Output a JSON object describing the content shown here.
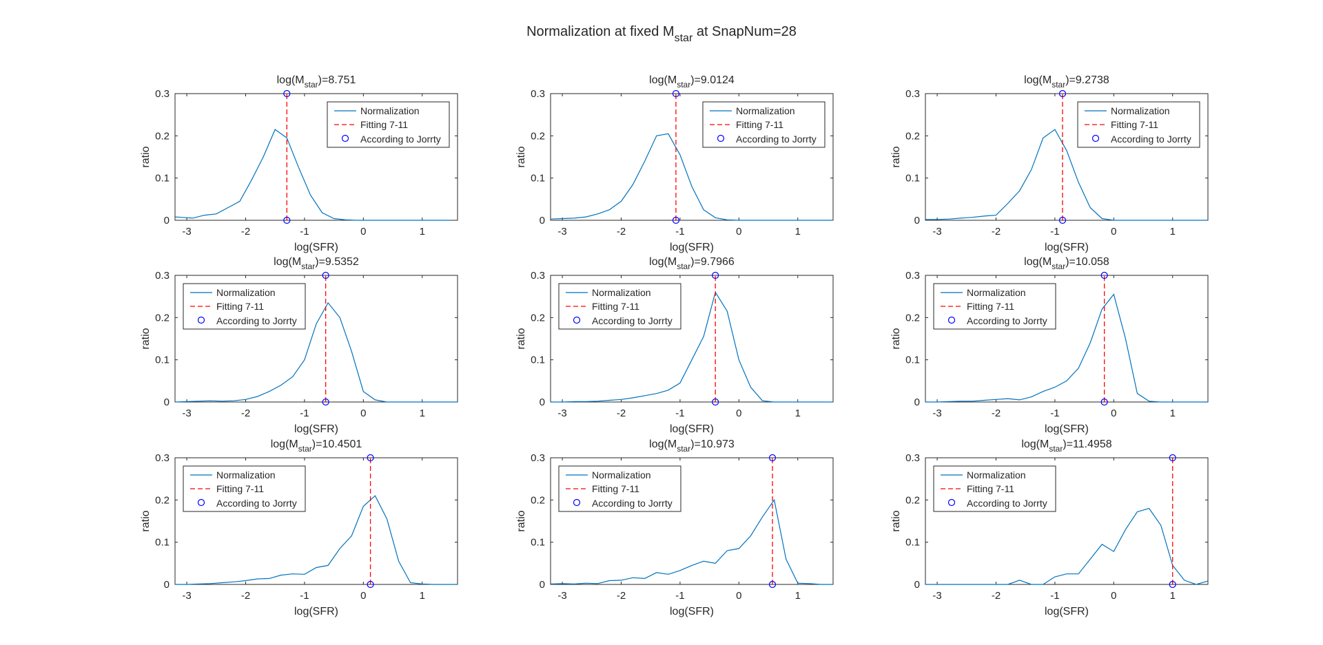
{
  "figure": {
    "title_main": "Normalization at fixed M",
    "title_sub": "star",
    "title_tail": " at SnapNum=28"
  },
  "colors": {
    "normalization": "#0072BD",
    "fitting": "#FF0000",
    "jorrty": "#0000FF",
    "axes": "#262626"
  },
  "legend_labels": [
    "Normalization",
    "Fitting 7-11",
    "According to Jorrty"
  ],
  "chart_data": [
    {
      "type": "line",
      "title_prefix": "log(M",
      "title_sub": "star",
      "title_value": ")=8.751",
      "xlabel": "log(SFR)",
      "ylabel": "ratio",
      "xlim": [
        -3.2,
        1.6
      ],
      "ylim": [
        0,
        0.3
      ],
      "xticks": [
        -3,
        -2,
        -1,
        0,
        1
      ],
      "yticks": [
        0,
        0.1,
        0.2,
        0.3
      ],
      "legend": "top-right",
      "x": [
        -3.2,
        -3.1,
        -2.9,
        -2.7,
        -2.5,
        -2.3,
        -2.1,
        -1.9,
        -1.7,
        -1.5,
        -1.3,
        -1.1,
        -0.9,
        -0.7,
        -0.5,
        -0.3,
        -0.1,
        0.1,
        0.3,
        0.5,
        0.7,
        0.9,
        1.1,
        1.3,
        1.5
      ],
      "y": [
        0.008,
        0.007,
        0.005,
        0.012,
        0.015,
        0.03,
        0.045,
        0.095,
        0.15,
        0.215,
        0.195,
        0.125,
        0.06,
        0.018,
        0.004,
        0.001,
        0,
        0,
        0,
        0,
        0,
        0,
        0,
        0,
        0
      ],
      "fit_x": -1.3,
      "jorrty_points": [
        [
          -1.3,
          0
        ],
        [
          -1.3,
          0.3
        ]
      ]
    },
    {
      "type": "line",
      "title_prefix": "log(M",
      "title_sub": "star",
      "title_value": ")=9.0124",
      "xlabel": "log(SFR)",
      "ylabel": "ratio",
      "xlim": [
        -3.2,
        1.6
      ],
      "ylim": [
        0,
        0.3
      ],
      "xticks": [
        -3,
        -2,
        -1,
        0,
        1
      ],
      "yticks": [
        0,
        0.1,
        0.2,
        0.3
      ],
      "legend": "top-right",
      "x": [
        -3.2,
        -3.0,
        -2.8,
        -2.6,
        -2.4,
        -2.2,
        -2.0,
        -1.8,
        -1.6,
        -1.4,
        -1.2,
        -1.0,
        -0.8,
        -0.6,
        -0.4,
        -0.2,
        0.0,
        0.2,
        0.4,
        0.6,
        0.8,
        1.0,
        1.2,
        1.4,
        1.6
      ],
      "y": [
        0.003,
        0.004,
        0.005,
        0.008,
        0.015,
        0.025,
        0.045,
        0.085,
        0.14,
        0.2,
        0.205,
        0.155,
        0.08,
        0.025,
        0.006,
        0.001,
        0,
        0,
        0,
        0,
        0,
        0,
        0,
        0,
        0
      ],
      "fit_x": -1.07,
      "jorrty_points": [
        [
          -1.07,
          0
        ],
        [
          -1.07,
          0.3
        ]
      ]
    },
    {
      "type": "line",
      "title_prefix": "log(M",
      "title_sub": "star",
      "title_value": ")=9.2738",
      "xlabel": "log(SFR)",
      "ylabel": "ratio",
      "xlim": [
        -3.2,
        1.6
      ],
      "ylim": [
        0,
        0.3
      ],
      "xticks": [
        -3,
        -2,
        -1,
        0,
        1
      ],
      "yticks": [
        0,
        0.1,
        0.2,
        0.3
      ],
      "legend": "top-right",
      "x": [
        -3.2,
        -3.0,
        -2.8,
        -2.6,
        -2.4,
        -2.2,
        -2.0,
        -1.8,
        -1.6,
        -1.4,
        -1.2,
        -1.0,
        -0.8,
        -0.6,
        -0.4,
        -0.2,
        0.0,
        0.2,
        0.4,
        0.6,
        0.8,
        1.0,
        1.2,
        1.4,
        1.6
      ],
      "y": [
        0.002,
        0.002,
        0.003,
        0.005,
        0.007,
        0.01,
        0.012,
        0.04,
        0.07,
        0.12,
        0.195,
        0.215,
        0.165,
        0.09,
        0.03,
        0.004,
        0,
        0,
        0,
        0,
        0,
        0,
        0,
        0,
        0
      ],
      "fit_x": -0.87,
      "jorrty_points": [
        [
          -0.87,
          0
        ],
        [
          -0.87,
          0.3
        ]
      ]
    },
    {
      "type": "line",
      "title_prefix": "log(M",
      "title_sub": "star",
      "title_value": ")=9.5352",
      "xlabel": "log(SFR)",
      "ylabel": "ratio",
      "xlim": [
        -3.2,
        1.6
      ],
      "ylim": [
        0,
        0.3
      ],
      "xticks": [
        -3,
        -2,
        -1,
        0,
        1
      ],
      "yticks": [
        0,
        0.1,
        0.2,
        0.3
      ],
      "legend": "top-left",
      "x": [
        -3.2,
        -3.0,
        -2.8,
        -2.6,
        -2.4,
        -2.2,
        -2.0,
        -1.8,
        -1.6,
        -1.4,
        -1.2,
        -1.0,
        -0.8,
        -0.6,
        -0.4,
        -0.2,
        0.0,
        0.2,
        0.4,
        0.6,
        0.8,
        1.0,
        1.2,
        1.4,
        1.6
      ],
      "y": [
        0,
        0.001,
        0.002,
        0.003,
        0.002,
        0.003,
        0.006,
        0.013,
        0.025,
        0.04,
        0.06,
        0.1,
        0.185,
        0.235,
        0.2,
        0.12,
        0.025,
        0.005,
        0,
        0,
        0,
        0,
        0,
        0,
        0
      ],
      "fit_x": -0.64,
      "jorrty_points": [
        [
          -0.64,
          0
        ],
        [
          -0.64,
          0.3
        ]
      ]
    },
    {
      "type": "line",
      "title_prefix": "log(M",
      "title_sub": "star",
      "title_value": ")=9.7966",
      "xlabel": "log(SFR)",
      "ylabel": "ratio",
      "xlim": [
        -3.2,
        1.6
      ],
      "ylim": [
        0,
        0.3
      ],
      "xticks": [
        -3,
        -2,
        -1,
        0,
        1
      ],
      "yticks": [
        0,
        0.1,
        0.2,
        0.3
      ],
      "legend": "top-left",
      "x": [
        -3.2,
        -3.0,
        -2.8,
        -2.6,
        -2.4,
        -2.2,
        -2.0,
        -1.8,
        -1.6,
        -1.4,
        -1.2,
        -1.0,
        -0.8,
        -0.6,
        -0.4,
        -0.2,
        0.0,
        0.2,
        0.4,
        0.6,
        0.8,
        1.0,
        1.2,
        1.4,
        1.6
      ],
      "y": [
        0,
        0,
        0.001,
        0.001,
        0.002,
        0.004,
        0.006,
        0.01,
        0.015,
        0.02,
        0.028,
        0.045,
        0.1,
        0.155,
        0.26,
        0.215,
        0.1,
        0.035,
        0.003,
        0,
        0,
        0,
        0,
        0,
        0
      ],
      "fit_x": -0.4,
      "jorrty_points": [
        [
          -0.4,
          0
        ],
        [
          -0.4,
          0.3
        ]
      ]
    },
    {
      "type": "line",
      "title_prefix": "log(M",
      "title_sub": "star",
      "title_value": ")=10.058",
      "xlabel": "log(SFR)",
      "ylabel": "ratio",
      "xlim": [
        -3.2,
        1.6
      ],
      "ylim": [
        0,
        0.3
      ],
      "xticks": [
        -3,
        -2,
        -1,
        0,
        1
      ],
      "yticks": [
        0,
        0.1,
        0.2,
        0.3
      ],
      "legend": "top-left",
      "x": [
        -3.2,
        -3.0,
        -2.8,
        -2.6,
        -2.4,
        -2.2,
        -2.0,
        -1.8,
        -1.6,
        -1.4,
        -1.2,
        -1.0,
        -0.8,
        -0.6,
        -0.4,
        -0.2,
        0.0,
        0.2,
        0.4,
        0.6,
        0.8,
        1.0,
        1.2,
        1.4,
        1.6
      ],
      "y": [
        0,
        0,
        0.001,
        0.002,
        0.002,
        0.004,
        0.006,
        0.008,
        0.005,
        0.012,
        0.025,
        0.035,
        0.05,
        0.08,
        0.14,
        0.22,
        0.255,
        0.15,
        0.02,
        0.002,
        0,
        0,
        0,
        0,
        0
      ],
      "fit_x": -0.16,
      "jorrty_points": [
        [
          -0.16,
          0
        ],
        [
          -0.16,
          0.3
        ]
      ]
    },
    {
      "type": "line",
      "title_prefix": "log(M",
      "title_sub": "star",
      "title_value": ")=10.4501",
      "xlabel": "log(SFR)",
      "ylabel": "ratio",
      "xlim": [
        -3.2,
        1.6
      ],
      "ylim": [
        0,
        0.3
      ],
      "xticks": [
        -3,
        -2,
        -1,
        0,
        1
      ],
      "yticks": [
        0,
        0.1,
        0.2,
        0.3
      ],
      "legend": "top-left",
      "x": [
        -3.2,
        -3.0,
        -2.8,
        -2.6,
        -2.4,
        -2.2,
        -2.0,
        -1.8,
        -1.6,
        -1.4,
        -1.2,
        -1.0,
        -0.8,
        -0.6,
        -0.4,
        -0.2,
        0.0,
        0.2,
        0.4,
        0.6,
        0.8,
        1.0,
        1.2,
        1.4,
        1.6
      ],
      "y": [
        0,
        0,
        0.001,
        0.002,
        0.004,
        0.006,
        0.009,
        0.013,
        0.014,
        0.022,
        0.025,
        0.024,
        0.04,
        0.045,
        0.085,
        0.115,
        0.185,
        0.21,
        0.155,
        0.055,
        0.004,
        0.001,
        0,
        0,
        0
      ],
      "fit_x": 0.12,
      "jorrty_points": [
        [
          0.12,
          0
        ],
        [
          0.12,
          0.3
        ]
      ]
    },
    {
      "type": "line",
      "title_prefix": "log(M",
      "title_sub": "star",
      "title_value": ")=10.973",
      "xlabel": "log(SFR)",
      "ylabel": "ratio",
      "xlim": [
        -3.2,
        1.6
      ],
      "ylim": [
        0,
        0.3
      ],
      "xticks": [
        -3,
        -2,
        -1,
        0,
        1
      ],
      "yticks": [
        0,
        0.1,
        0.2,
        0.3
      ],
      "legend": "top-left",
      "x": [
        -3.2,
        -3.0,
        -2.8,
        -2.6,
        -2.4,
        -2.2,
        -2.0,
        -1.8,
        -1.6,
        -1.4,
        -1.2,
        -1.0,
        -0.8,
        -0.6,
        -0.4,
        -0.2,
        0.0,
        0.2,
        0.4,
        0.6,
        0.8,
        1.0,
        1.2,
        1.4,
        1.6
      ],
      "y": [
        0.001,
        0.002,
        0.001,
        0.003,
        0.002,
        0.009,
        0.01,
        0.016,
        0.014,
        0.028,
        0.024,
        0.033,
        0.045,
        0.055,
        0.05,
        0.08,
        0.085,
        0.115,
        0.16,
        0.2,
        0.06,
        0.003,
        0.002,
        0,
        0
      ],
      "fit_x": 0.57,
      "jorrty_points": [
        [
          0.57,
          0
        ],
        [
          0.57,
          0.3
        ]
      ]
    },
    {
      "type": "line",
      "title_prefix": "log(M",
      "title_sub": "star",
      "title_value": ")=11.4958",
      "xlabel": "log(SFR)",
      "ylabel": "ratio",
      "xlim": [
        -3.2,
        1.6
      ],
      "ylim": [
        0,
        0.3
      ],
      "xticks": [
        -3,
        -2,
        -1,
        0,
        1
      ],
      "yticks": [
        0,
        0.1,
        0.2,
        0.3
      ],
      "legend": "top-left",
      "x": [
        -3.2,
        -3.0,
        -2.8,
        -2.6,
        -2.4,
        -2.2,
        -2.0,
        -1.8,
        -1.6,
        -1.4,
        -1.2,
        -1.0,
        -0.8,
        -0.6,
        -0.4,
        -0.2,
        0.0,
        0.2,
        0.4,
        0.6,
        0.8,
        1.0,
        1.2,
        1.4,
        1.6
      ],
      "y": [
        0,
        0,
        0,
        0,
        0,
        0,
        0,
        0,
        0.01,
        0,
        0,
        0.018,
        0.025,
        0.025,
        0.06,
        0.095,
        0.078,
        0.13,
        0.172,
        0.18,
        0.14,
        0.045,
        0.01,
        0,
        0.008
      ],
      "fit_x": 1.0,
      "jorrty_points": [
        [
          1.0,
          0
        ],
        [
          1.0,
          0.3
        ]
      ]
    }
  ]
}
